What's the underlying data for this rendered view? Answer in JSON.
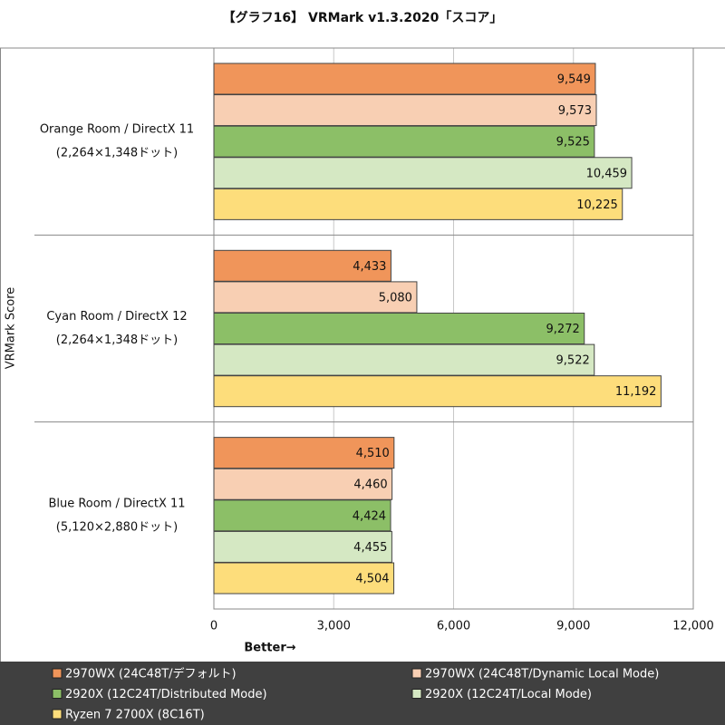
{
  "chart_data": {
    "type": "hbar",
    "title": "【グラフ16】 VRMark v1.3.2020「スコア」",
    "y_label": "VRMark Score",
    "x_label": "Better→",
    "categories": [
      "Orange Room / DirectX 11",
      "Cyan Room / DirectX 12",
      "Blue Room / DirectX 11"
    ],
    "category_sublabels": [
      "(2,264×1,348ドット)",
      "(2,264×1,348ドット)",
      "(5,120×2,880ドット)"
    ],
    "series": [
      {
        "name": "2970WX (24C48T/デフォルト)",
        "color": "#f0955a",
        "values": [
          9549,
          4433,
          4510
        ],
        "value_labels": [
          "9,549",
          "4,433",
          "4,510"
        ]
      },
      {
        "name": "2970WX (24C48T/Dynamic Local Mode)",
        "color": "#f8cfb3",
        "values": [
          9573,
          5080,
          4460
        ],
        "value_labels": [
          "9,573",
          "5,080",
          "4,460"
        ]
      },
      {
        "name": "2920X (12C24T/Distributed Mode)",
        "color": "#8cbf67",
        "values": [
          9525,
          9272,
          4424
        ],
        "value_labels": [
          "9,525",
          "9,272",
          "4,424"
        ]
      },
      {
        "name": "2920X (12C24T/Local Mode)",
        "color": "#d5e8c3",
        "values": [
          10459,
          9522,
          4455
        ],
        "value_labels": [
          "10,459",
          "9,522",
          "4,455"
        ]
      },
      {
        "name": "Ryzen 7 2700X (8C16T)",
        "color": "#fddd7b",
        "values": [
          10225,
          11192,
          4504
        ],
        "value_labels": [
          "10,225",
          "11,192",
          "4,504"
        ]
      }
    ],
    "xlim": [
      0,
      12000
    ],
    "xticks": [
      0,
      {
        "value": 3000,
        "label": "3,000"
      },
      {
        "value": 6000,
        "label": "6,000"
      },
      {
        "value": 9000,
        "label": "9,000"
      },
      {
        "value": 12000,
        "label": "12,000"
      }
    ],
    "grid": true
  }
}
